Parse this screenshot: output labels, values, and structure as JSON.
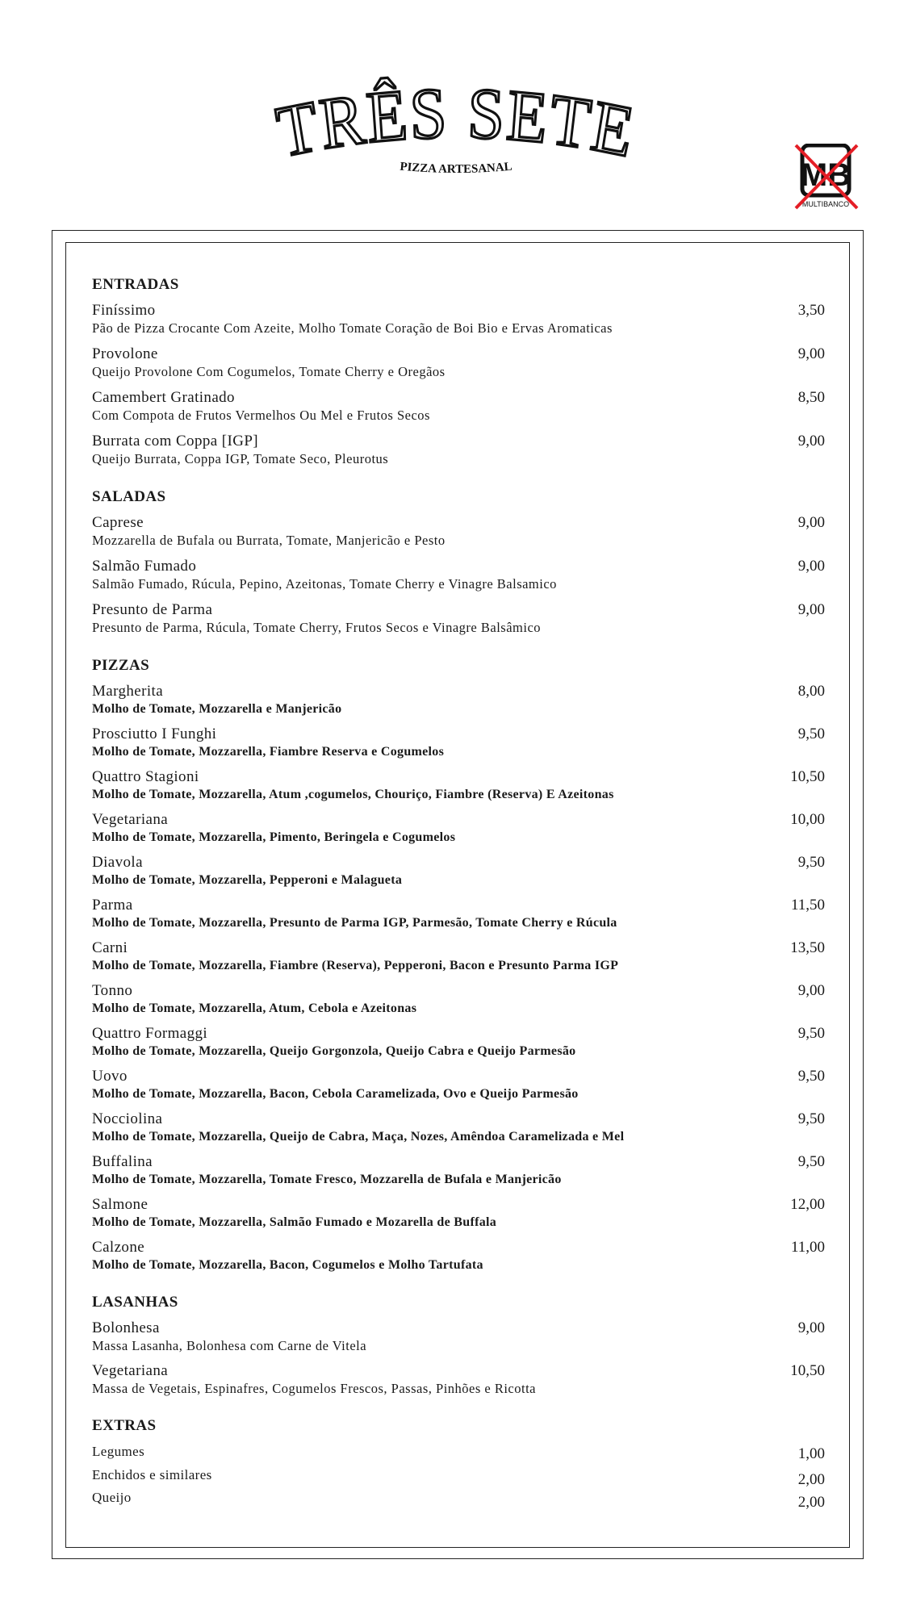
{
  "header": {
    "title": "TRÊS SETE",
    "subtitle": "PIZZA ARTESANAL",
    "payment_badge": {
      "text": "MULTIBANCO",
      "icon": "multibanco-crossed-out-icon",
      "cross_color": "#e41e26"
    }
  },
  "sections": [
    {
      "title": "ENTRADAS",
      "items": [
        {
          "name": "Finíssimo",
          "desc": "Pão de Pizza Crocante Com Azeite, Molho Tomate Coração de Boi Bio e Ervas Aromaticas",
          "price": "3,50"
        },
        {
          "name": "Provolone",
          "desc": "Queijo Provolone Com Cogumelos, Tomate Cherry e Oregãos",
          "price": "9,00"
        },
        {
          "name": "Camembert Gratinado",
          "desc": "Com Compota de Frutos Vermelhos Ou Mel e Frutos Secos",
          "price": "8,50"
        },
        {
          "name": "Burrata com Coppa [IGP]",
          "desc": "Queijo Burrata, Coppa IGP, Tomate Seco, Pleurotus",
          "price": "9,00"
        }
      ]
    },
    {
      "title": "SALADAS",
      "items": [
        {
          "name": "Caprese",
          "desc": "Mozzarella de Bufala ou Burrata, Tomate, Manjericão e Pesto",
          "price": "9,00"
        },
        {
          "name": "Salmão Fumado",
          "desc": "Salmão Fumado, Rúcula, Pepino, Azeitonas, Tomate Cherry e Vinagre Balsamico",
          "price": "9,00"
        },
        {
          "name": "Presunto de Parma",
          "desc": "Presunto de Parma, Rúcula, Tomate Cherry, Frutos Secos e Vinagre Balsâmico",
          "price": "9,00"
        }
      ]
    },
    {
      "title": "PIZZAS",
      "items": [
        {
          "name": "Margherita",
          "desc": "Molho de Tomate, Mozzarella e Manjericão",
          "price": "8,00"
        },
        {
          "name": "Prosciutto I Funghi",
          "desc": "Molho de Tomate, Mozzarella, Fiambre Reserva e Cogumelos",
          "price": "9,50"
        },
        {
          "name": "Quattro Stagioni",
          "desc": "Molho de Tomate, Mozzarella, Atum ,cogumelos, Chouriço, Fiambre (Reserva) E Azeitonas",
          "price": "10,50"
        },
        {
          "name": "Vegetariana",
          "desc": "Molho de Tomate, Mozzarella, Pimento, Beringela e Cogumelos",
          "price": "10,00"
        },
        {
          "name": "Diavola",
          "desc": "Molho de Tomate, Mozzarella, Pepperoni e Malagueta",
          "price": "9,50"
        },
        {
          "name": "Parma",
          "desc": "Molho de Tomate, Mozzarella, Presunto de Parma IGP, Parmesão, Tomate Cherry e Rúcula",
          "price": "11,50"
        },
        {
          "name": "Carni",
          "desc": "Molho de Tomate, Mozzarella, Fiambre (Reserva), Pepperoni, Bacon e Presunto Parma IGP",
          "price": "13,50"
        },
        {
          "name": "Tonno",
          "desc": "Molho de Tomate, Mozzarella, Atum, Cebola e Azeitonas",
          "price": "9,00"
        },
        {
          "name": "Quattro Formaggi",
          "desc": "Molho de Tomate, Mozzarella, Queijo Gorgonzola, Queijo Cabra e Queijo Parmesão",
          "price": "9,50"
        },
        {
          "name": "Uovo",
          "desc": "Molho de Tomate, Mozzarella, Bacon, Cebola Caramelizada, Ovo e Queijo Parmesão",
          "price": "9,50"
        },
        {
          "name": "Nocciolina",
          "desc": "Molho de Tomate, Mozzarella, Queijo de Cabra, Maça, Nozes, Amêndoa Caramelizada e Mel",
          "price": "9,50"
        },
        {
          "name": "Buffalina",
          "desc": "Molho de Tomate, Mozzarella, Tomate Fresco, Mozzarella de Bufala e Manjericão",
          "price": "9,50"
        },
        {
          "name": "Salmone",
          "desc": "Molho de Tomate, Mozzarella, Salmão Fumado e Mozarella de Buffala",
          "price": "12,00"
        },
        {
          "name": "Calzone",
          "desc": "Molho de Tomate, Mozzarella, Bacon, Cogumelos e Molho Tartufata",
          "price": "11,00"
        }
      ]
    },
    {
      "title": "LASANHAS",
      "items": [
        {
          "name": "Bolonhesa",
          "desc": "Massa Lasanha, Bolonhesa com Carne de Vitela",
          "price": "9,00"
        },
        {
          "name": "Vegetariana",
          "desc": "Massa de Vegetais,  Espinafres, Cogumelos Frescos, Passas, Pinhões e Ricotta",
          "price": "10,50"
        }
      ]
    },
    {
      "title": "EXTRAS",
      "items": [
        {
          "name": "Legumes",
          "price": "1,00"
        },
        {
          "name": "Enchidos e similares",
          "price": "2,00"
        },
        {
          "name": "Queijo",
          "price": "2,00"
        }
      ]
    }
  ]
}
